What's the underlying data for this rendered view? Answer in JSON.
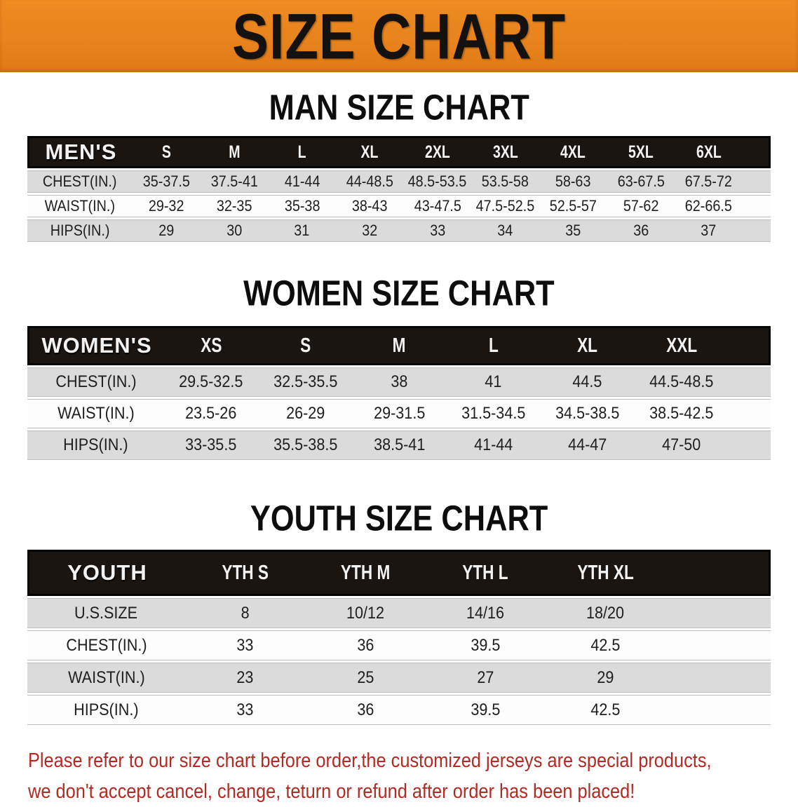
{
  "banner": {
    "title": "SIZE CHART"
  },
  "sections": [
    {
      "title": "MAN SIZE CHART",
      "header_label": "MEN'S",
      "columns": [
        "S",
        "M",
        "L",
        "XL",
        "2XL",
        "3XL",
        "4XL",
        "5XL",
        "6XL"
      ],
      "rows": [
        {
          "label": "CHEST(IN.)",
          "values": [
            "35-37.5",
            "37.5-41",
            "41-44",
            "44-48.5",
            "48.5-53.5",
            "53.5-58",
            "58-63",
            "63-67.5",
            "67.5-72"
          ]
        },
        {
          "label": "WAIST(IN.)",
          "values": [
            "29-32",
            "32-35",
            "35-38",
            "38-43",
            "43-47.5",
            "47.5-52.5",
            "52.5-57",
            "57-62",
            "62-66.5"
          ]
        },
        {
          "label": "HIPS(IN.)",
          "values": [
            "29",
            "30",
            "31",
            "32",
            "33",
            "34",
            "35",
            "36",
            "37"
          ]
        }
      ]
    },
    {
      "title": "WOMEN SIZE CHART",
      "header_label": "WOMEN'S",
      "columns": [
        "XS",
        "S",
        "M",
        "L",
        "XL",
        "XXL"
      ],
      "rows": [
        {
          "label": "CHEST(IN.)",
          "values": [
            "29.5-32.5",
            "32.5-35.5",
            "38",
            "41",
            "44.5",
            "44.5-48.5"
          ]
        },
        {
          "label": "WAIST(IN.)",
          "values": [
            "23.5-26",
            "26-29",
            "29-31.5",
            "31.5-34.5",
            "34.5-38.5",
            "38.5-42.5"
          ]
        },
        {
          "label": "HIPS(IN.)",
          "values": [
            "33-35.5",
            "35.5-38.5",
            "38.5-41",
            "41-44",
            "44-47",
            "47-50"
          ]
        }
      ]
    },
    {
      "title": "YOUTH SIZE CHART",
      "header_label": "YOUTH",
      "columns": [
        "YTH S",
        "YTH M",
        "YTH L",
        "YTH XL"
      ],
      "rows": [
        {
          "label": "U.S.SIZE",
          "values": [
            "8",
            "10/12",
            "14/16",
            "18/20"
          ]
        },
        {
          "label": "CHEST(IN.)",
          "values": [
            "33",
            "36",
            "39.5",
            "42.5"
          ]
        },
        {
          "label": "WAIST(IN.)",
          "values": [
            "23",
            "25",
            "27",
            "29"
          ]
        },
        {
          "label": "HIPS(IN.)",
          "values": [
            "33",
            "36",
            "39.5",
            "42.5"
          ]
        }
      ]
    }
  ],
  "disclaimer": {
    "line1": "Please refer to our size chart before order,the customized jerseys are special products,",
    "line2": "we don't accept cancel, change, teturn or refund after order has been placed!"
  },
  "colors": {
    "banner_orange": "#E8831D",
    "banner_text": "#141210",
    "table_header_bg": "#1A1511",
    "table_header_text": "#F2F2F2",
    "row_gray": "#DBDBDB",
    "row_white": "#FDFDFD",
    "disclaimer_red": "#B22A24"
  }
}
